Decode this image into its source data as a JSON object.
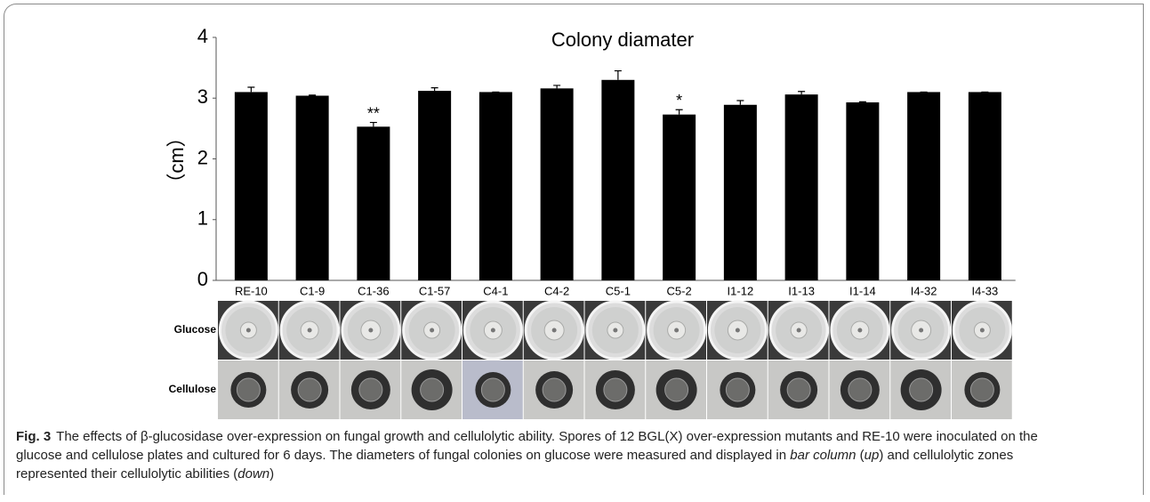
{
  "chart_data": {
    "type": "bar",
    "title": "Colony diamater",
    "y_label": "（cm）",
    "categories": [
      "RE-10",
      "C1-9",
      "C1-36",
      "C1-57",
      "C4-1",
      "C4-2",
      "C5-1",
      "C5-2",
      "I1-12",
      "I1-13",
      "I1-14",
      "I4-32",
      "I4-33"
    ],
    "values": [
      3.1,
      3.04,
      2.53,
      3.12,
      3.1,
      3.16,
      3.3,
      2.73,
      2.89,
      3.06,
      2.93,
      3.1,
      3.1
    ],
    "errors": [
      0.08,
      0.01,
      0.07,
      0.05,
      0,
      0.05,
      0.15,
      0.08,
      0.07,
      0.05,
      0.01,
      0,
      0
    ],
    "color": "#000000",
    "annotations": [
      {
        "text": "**",
        "x": "C1-36"
      },
      {
        "text": "*",
        "x": "C5-2"
      }
    ],
    "ylim": [
      0,
      4
    ],
    "yticks": [
      0,
      1,
      2,
      3,
      4
    ],
    "grid": false
  },
  "photo_rows": [
    "Glucose",
    "Cellulose"
  ],
  "caption": {
    "label": "Fig. 3",
    "parts": [
      "The effects of β-glucosidase over-expression on fungal growth and cellulolytic ability. Spores of 12 BGL(X) over-expression mutants and RE-10 were inoculated on the glucose and cellulose plates and cultured for 6 days. The diameters of fungal colonies on glucose were measured and displayed in ",
      "bar column",
      " (",
      "up",
      ") and cellulolytic zones represented their cellulolytic abilities (",
      "down",
      ")"
    ]
  }
}
